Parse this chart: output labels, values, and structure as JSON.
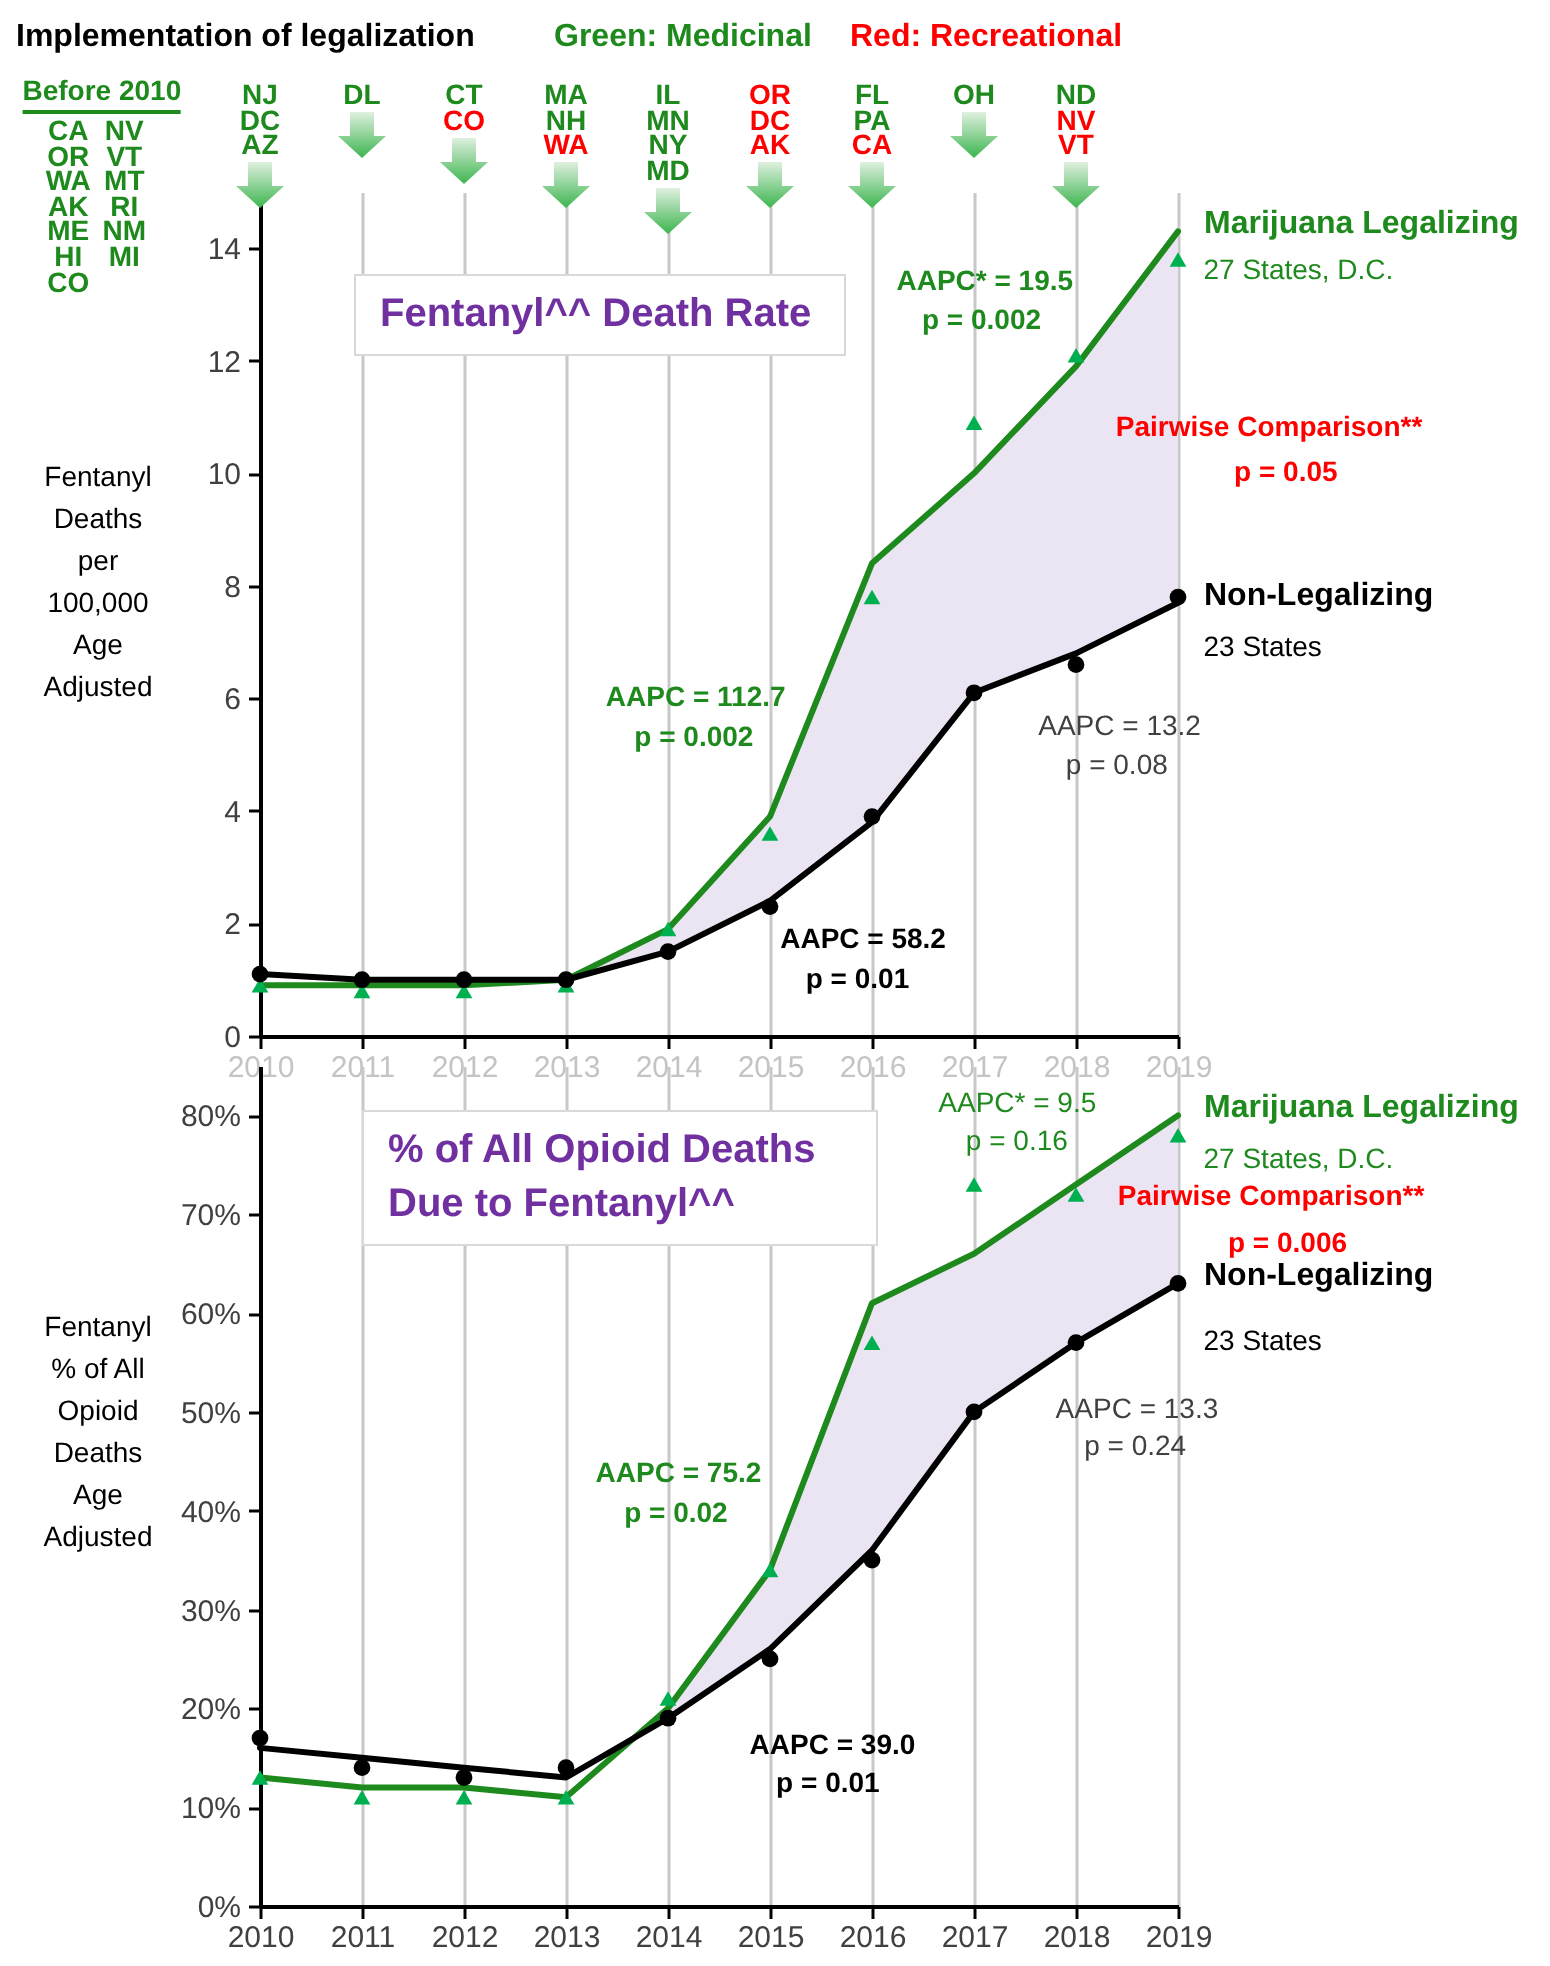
{
  "chart_data": [
    {
      "type": "line",
      "title": "Fentanyl^^ Death Rate",
      "ylabel": "Fentanyl\nDeaths\nper\n100,000\nAge\nAdjusted",
      "x": [
        2010,
        2011,
        2012,
        2013,
        2014,
        2015,
        2016,
        2017,
        2018,
        2019
      ],
      "xlim": [
        2010,
        2019
      ],
      "xticks": [
        2010,
        2011,
        2012,
        2013,
        2014,
        2015,
        2016,
        2017,
        2018,
        2019
      ],
      "ylim": [
        0,
        15
      ],
      "yticks": [
        0,
        2,
        4,
        6,
        8,
        10,
        12,
        14
      ],
      "grid": "x",
      "series": [
        {
          "name": "Marijuana Legalizing",
          "type": "line",
          "color": "#1e8a1e",
          "values": [
            0.9,
            0.9,
            0.9,
            1.0,
            1.9,
            3.9,
            8.4,
            10.0,
            11.9,
            14.3
          ],
          "lower": [
            null,
            null,
            null,
            1.0,
            1.5,
            2.4,
            3.8,
            6.1,
            6.8,
            7.7
          ],
          "upper": [
            null,
            null,
            null,
            1.0,
            1.9,
            3.9,
            8.4,
            10.0,
            11.9,
            14.3
          ]
        },
        {
          "type": "scatter",
          "marker": "triangle",
          "color": "#00b050",
          "values": [
            0.9,
            0.8,
            0.8,
            0.9,
            1.9,
            3.6,
            7.8,
            10.9,
            12.1,
            13.8
          ]
        },
        {
          "name": "Non-Legalizing",
          "type": "line",
          "color": "#000000",
          "values": [
            1.1,
            1.0,
            1.0,
            1.0,
            1.5,
            2.4,
            3.8,
            6.1,
            6.8,
            7.7
          ]
        },
        {
          "type": "scatter",
          "marker": "circle",
          "color": "#000000",
          "values": [
            1.1,
            1.0,
            1.0,
            1.0,
            1.5,
            2.3,
            3.9,
            6.1,
            6.6,
            7.8
          ]
        }
      ],
      "annotations": [
        "Implementation of legalization",
        "Green: Medicinal",
        "Red: Recreational",
        "Before 2010",
        "CA",
        "OR",
        "WA",
        "AK",
        "ME",
        "HI",
        "CO",
        "NV",
        "VT",
        "MT",
        "RI",
        "NM",
        "MI",
        "NJ",
        "DC",
        "AZ",
        "DL",
        "CT",
        "CO",
        "MA",
        "NH",
        "WA",
        "IL",
        "MN",
        "NY",
        "MD",
        "OR",
        "DC",
        "AK",
        "FL",
        "PA",
        "CA",
        "OH",
        "ND",
        "NV",
        "VT",
        "AAPC = 112.7",
        "p = 0.002",
        "AAPC = 58.2",
        "p = 0.01",
        "AAPC* = 19.5",
        "p = 0.002",
        "Pairwise Comparison**",
        "p = 0.05",
        "AAPC = 13.2",
        "p = 0.08",
        "27 States, D.C.",
        "23 States"
      ]
    },
    {
      "type": "line",
      "title": "% of All Opioid Deaths Due to Fentanyl^^",
      "ylabel": "Fentanyl\n% of All\nOpioid\nDeaths\nAge\nAdjusted",
      "x": [
        2010,
        2011,
        2012,
        2013,
        2014,
        2015,
        2016,
        2017,
        2018,
        2019
      ],
      "xlim": [
        2010,
        2019
      ],
      "xticks": [
        2010,
        2011,
        2012,
        2013,
        2014,
        2015,
        2016,
        2017,
        2018,
        2019
      ],
      "ylim": [
        0,
        85
      ],
      "yticks": [
        {
          "value": 0,
          "label": "0%"
        },
        {
          "value": 10,
          "label": "10%"
        },
        {
          "value": 20,
          "label": "20%"
        },
        {
          "value": 30,
          "label": "30%"
        },
        {
          "value": 40,
          "label": "40%"
        },
        {
          "value": 50,
          "label": "50%"
        },
        {
          "value": 60,
          "label": "60%"
        },
        {
          "value": 70,
          "label": "70%"
        },
        {
          "value": 80,
          "label": "80%"
        }
      ],
      "grid": "x",
      "series": [
        {
          "name": "Marijuana Legalizing",
          "type": "line",
          "color": "#1e8a1e",
          "values": [
            13,
            12,
            12,
            11,
            20,
            34,
            61,
            66,
            73,
            80
          ],
          "lower": [
            null,
            null,
            null,
            null,
            19,
            26,
            36,
            50,
            57,
            63
          ],
          "upper": [
            null,
            null,
            null,
            null,
            20,
            34,
            61,
            66,
            73,
            80
          ]
        },
        {
          "type": "scatter",
          "marker": "triangle",
          "color": "#00b050",
          "values": [
            13,
            11,
            11,
            11,
            21,
            34,
            57,
            73,
            72,
            78
          ]
        },
        {
          "name": "Non-Legalizing",
          "type": "line",
          "color": "#000000",
          "values": [
            16,
            15,
            14,
            13,
            19,
            26,
            36,
            50,
            57,
            63
          ]
        },
        {
          "type": "scatter",
          "marker": "circle",
          "color": "#000000",
          "values": [
            17,
            14,
            13,
            14,
            19,
            25,
            35,
            50,
            57,
            63
          ]
        }
      ],
      "annotations": [
        "AAPC = 75.2",
        "p = 0.02",
        "AAPC = 39.0",
        "p = 0.01",
        "AAPC* = 9.5",
        "p = 0.16",
        "Pairwise Comparison**",
        "p = 0.006",
        "AAPC = 13.3",
        "p = 0.24",
        "27 States, D.C.",
        "23 States"
      ]
    }
  ]
}
